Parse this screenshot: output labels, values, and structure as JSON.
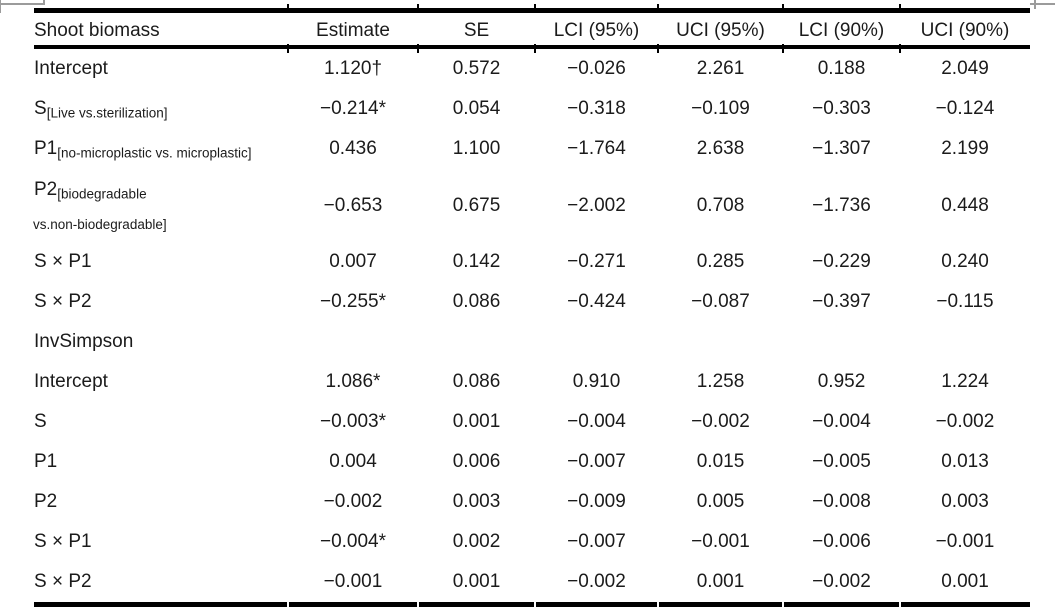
{
  "colors": {
    "background": "#ffffff",
    "text": "#1b1b1b",
    "rule": "#000000",
    "artifact_gray": "#9b9b9b"
  },
  "table": {
    "columns": [
      "Shoot biomass",
      "Estimate",
      "SE",
      "LCI (95%)",
      "UCI (95%)",
      "LCI (90%)",
      "UCI (90%)"
    ],
    "section_label": "InvSimpson",
    "rows": [
      {
        "label": "Intercept",
        "values": [
          "1.120†",
          "0.572",
          "−0.026",
          "2.261",
          "0.188",
          "2.049"
        ]
      },
      {
        "label": "S",
        "sub": "[Live vs.sterilization]",
        "values": [
          "−0.214*",
          "0.054",
          "−0.318",
          "−0.109",
          "−0.303",
          "−0.124"
        ]
      },
      {
        "label": "P1",
        "sub": "[no-microplastic vs. microplastic]",
        "values": [
          "0.436",
          "1.100",
          "−1.764",
          "2.638",
          "−1.307",
          "2.199"
        ]
      },
      {
        "label": "P2",
        "sub": "[biodegradable",
        "sub2": "vs.non-biodegradable]",
        "tall": true,
        "values": [
          "−0.653",
          "0.675",
          "−2.002",
          "0.708",
          "−1.736",
          "0.448"
        ]
      },
      {
        "label": "S × P1",
        "values": [
          "0.007",
          "0.142",
          "−0.271",
          "0.285",
          "−0.229",
          "0.240"
        ]
      },
      {
        "label": "S × P2",
        "values": [
          "−0.255*",
          "0.086",
          "−0.424",
          "−0.087",
          "−0.397",
          "−0.115"
        ]
      },
      {
        "label": "InvSimpson",
        "section": true,
        "values": [
          "",
          "",
          "",
          "",
          "",
          ""
        ]
      },
      {
        "label": "Intercept",
        "values": [
          "1.086*",
          "0.086",
          "0.910",
          "1.258",
          "0.952",
          "1.224"
        ]
      },
      {
        "label": "S",
        "values": [
          "−0.003*",
          "0.001",
          "−0.004",
          "−0.002",
          "−0.004",
          "−0.002"
        ]
      },
      {
        "label": "P1",
        "values": [
          "0.004",
          "0.006",
          "−0.007",
          "0.015",
          "−0.005",
          "0.013"
        ]
      },
      {
        "label": "P2",
        "values": [
          "−0.002",
          "0.003",
          "−0.009",
          "0.005",
          "−0.008",
          "0.003"
        ]
      },
      {
        "label": "S × P1",
        "values": [
          "−0.004*",
          "0.002",
          "−0.007",
          "−0.001",
          "−0.006",
          "−0.001"
        ]
      },
      {
        "label": "S × P2",
        "values": [
          "−0.001",
          "0.001",
          "−0.002",
          "0.001",
          "−0.002",
          "0.001"
        ]
      }
    ]
  }
}
